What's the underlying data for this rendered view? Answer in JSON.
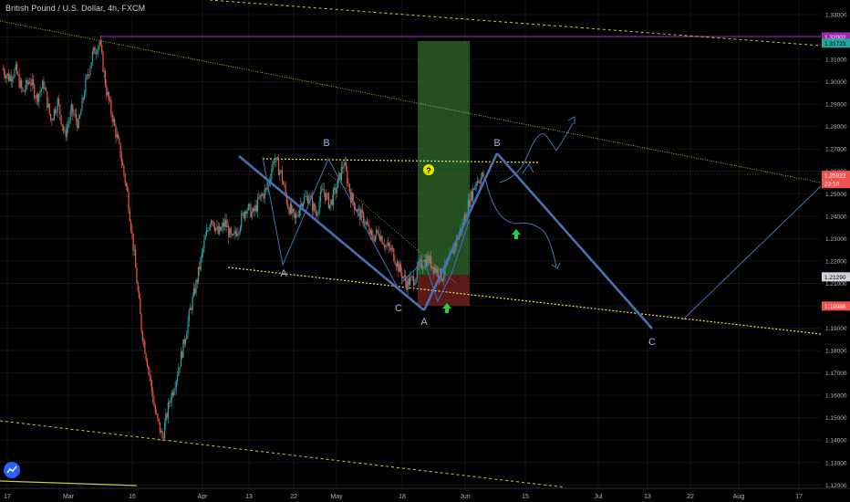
{
  "header": {
    "symbol_title": "British Pound / U.S. Dollar, 4h, FXCM"
  },
  "price_axis": {
    "ticks": [
      "1.33000",
      "1.32000",
      "1.31000",
      "1.30000",
      "1.29000",
      "1.28000",
      "1.27000",
      "1.26000",
      "1.25000",
      "1.24000",
      "1.23000",
      "1.22000",
      "1.21000",
      "1.20000",
      "1.19000",
      "1.18000",
      "1.17000",
      "1.16000",
      "1.15000",
      "1.14000",
      "1.13000",
      "1.12000"
    ],
    "tags": [
      {
        "label": "1.32002",
        "color": "#9c27b0",
        "text_color": "#ffffff"
      },
      {
        "label": "1.31723",
        "color": "#26a69a",
        "text_color": "#000000"
      },
      {
        "label": "1.25822",
        "color": "#ef5350",
        "text_color": "#ffffff"
      },
      {
        "label": "23:10",
        "color": "#ef5350",
        "text_color": "#ffffff"
      },
      {
        "label": "1.21290",
        "color": "#d1d4dc",
        "text_color": "#000000"
      },
      {
        "label": "1.19986",
        "color": "#ef5350",
        "text_color": "#ffffff"
      }
    ]
  },
  "time_axis": {
    "ticks": [
      "17",
      "Mar",
      "16",
      "Apr",
      "13",
      "22",
      "May",
      "18",
      "Jun",
      "15",
      "Jul",
      "13",
      "22",
      "Aug",
      "17"
    ]
  },
  "wave_labels": [
    "A",
    "B",
    "C",
    "A",
    "B",
    "C"
  ],
  "markers": {
    "question": "?"
  },
  "colors": {
    "background": "#000000",
    "up_candle": "#26a69a",
    "down_candle": "#ef5350",
    "wave_line": "#4a6fb5",
    "trendline": "#c8c84a",
    "resistance": "#9c27b0",
    "target_zone": "#2e6b2e",
    "stop_zone": "#6b1f1f",
    "arrow": "#20d040"
  },
  "chart_data": {
    "type": "line",
    "title": "British Pound / U.S. Dollar, 4h, FXCM",
    "xlabel": "",
    "ylabel": "",
    "ylim": [
      1.1185,
      1.3365
    ],
    "x_ticks": [
      "17",
      "Mar",
      "16",
      "Apr",
      "13",
      "22",
      "May",
      "18",
      "Jun",
      "15",
      "Jul",
      "13",
      "22",
      "Aug",
      "17"
    ],
    "y_ticks": [
      1.33,
      1.32,
      1.31,
      1.3,
      1.29,
      1.28,
      1.27,
      1.26,
      1.25,
      1.24,
      1.23,
      1.22,
      1.21,
      1.2,
      1.19,
      1.18,
      1.17,
      1.16,
      1.15,
      1.14,
      1.13,
      1.12
    ],
    "series": [
      {
        "values": [
          1.306,
          1.302,
          1.305,
          1.295,
          1.301,
          1.293,
          1.299,
          1.283,
          1.291,
          1.276,
          1.287,
          1.281,
          1.299,
          1.312,
          1.318,
          1.296,
          1.282,
          1.268,
          1.25,
          1.222,
          1.19,
          1.172,
          1.152,
          1.141,
          1.157,
          1.168,
          1.182,
          1.198,
          1.212,
          1.228,
          1.24,
          1.232,
          1.237,
          1.229,
          1.236,
          1.244,
          1.241,
          1.248,
          1.252,
          1.266,
          1.259,
          1.245,
          1.238,
          1.247,
          1.249,
          1.241,
          1.252,
          1.245,
          1.253,
          1.264,
          1.249,
          1.242,
          1.238,
          1.23,
          1.233,
          1.227,
          1.224,
          1.216,
          1.21,
          1.212,
          1.218,
          1.221,
          1.217,
          1.213,
          1.219,
          1.228,
          1.236,
          1.247,
          1.256,
          1.258
        ]
      }
    ],
    "price_levels": [
      1.32002,
      1.31723,
      1.25822,
      1.2129,
      1.19986
    ],
    "annotations": [
      "A",
      "B",
      "C",
      "A",
      "B",
      "C"
    ]
  }
}
